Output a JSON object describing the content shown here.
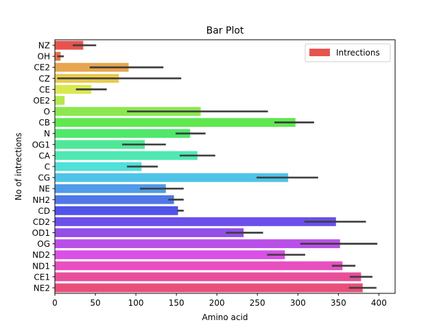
{
  "chart_data": {
    "type": "bar",
    "orientation": "horizontal",
    "title": "Bar Plot",
    "xlabel": "Amino acid",
    "ylabel": "No of intrections",
    "xlim": [
      0,
      420
    ],
    "xticks": [
      0,
      50,
      100,
      150,
      200,
      250,
      300,
      350,
      400
    ],
    "grid": false,
    "legend": {
      "position": "top-right",
      "label": "Intrections",
      "color": "#e8534f"
    },
    "categories": [
      "NZ",
      "OH",
      "CE2",
      "CZ",
      "CE",
      "OE2",
      "O",
      "CB",
      "N",
      "OG1",
      "CA",
      "C",
      "CG",
      "NE",
      "NH2",
      "CD",
      "CD2",
      "OD1",
      "OG",
      "ND2",
      "ND1",
      "CE1",
      "NE2"
    ],
    "values": [
      35,
      7,
      91,
      79,
      45,
      12,
      180,
      297,
      167,
      111,
      176,
      107,
      288,
      137,
      147,
      152,
      347,
      233,
      352,
      284,
      355,
      378,
      380
    ],
    "error_low": [
      22,
      3,
      43,
      3,
      26,
      12,
      89,
      271,
      149,
      83,
      154,
      89,
      249,
      105,
      140,
      151,
      308,
      211,
      303,
      262,
      342,
      364,
      363
    ],
    "error_high": [
      51,
      11,
      134,
      156,
      64,
      12,
      263,
      320,
      186,
      137,
      198,
      127,
      325,
      159,
      159,
      159,
      384,
      257,
      398,
      309,
      371,
      392,
      397
    ],
    "colors": [
      "#e8534f",
      "#e8714f",
      "#e8a54f",
      "#e8c94f",
      "#d9e84f",
      "#b6e84f",
      "#8be84f",
      "#5fe84f",
      "#4fe86b",
      "#4fe897",
      "#4fe8b3",
      "#4fe0d8",
      "#4fc4e8",
      "#4f9be8",
      "#4f77e8",
      "#4f53e8",
      "#6b4fe8",
      "#934fe8",
      "#b94fe8",
      "#d94fe8",
      "#e84fc1",
      "#e84f9b",
      "#e84f7a"
    ]
  }
}
